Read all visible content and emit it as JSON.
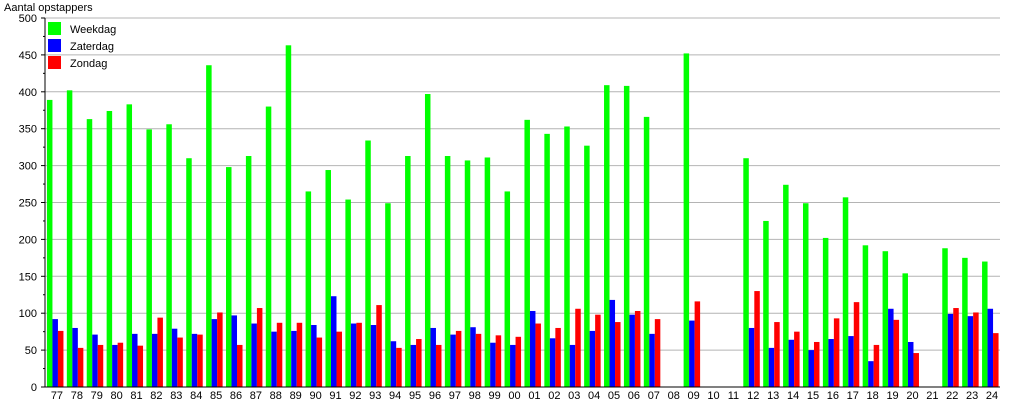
{
  "chart_data": {
    "type": "bar",
    "title": "",
    "ylabel": "Aantal opstappers",
    "xlabel": "",
    "ylim": [
      0,
      500
    ],
    "yticks": [
      0,
      50,
      100,
      150,
      200,
      250,
      300,
      350,
      400,
      450,
      500
    ],
    "grid": true,
    "legend_position": "top-left",
    "categories": [
      "77",
      "78",
      "79",
      "80",
      "81",
      "82",
      "83",
      "84",
      "85",
      "86",
      "87",
      "88",
      "89",
      "90",
      "91",
      "92",
      "93",
      "94",
      "95",
      "96",
      "97",
      "98",
      "99",
      "00",
      "01",
      "02",
      "03",
      "04",
      "05",
      "06",
      "07",
      "08",
      "09",
      "10",
      "11",
      "12",
      "13",
      "14",
      "15",
      "16",
      "17",
      "18",
      "19",
      "20",
      "21",
      "22",
      "23",
      "24"
    ],
    "series": [
      {
        "name": "Weekdag",
        "color": "#00ff00",
        "values": [
          389,
          402,
          363,
          374,
          383,
          349,
          356,
          310,
          436,
          298,
          313,
          380,
          463,
          265,
          294,
          254,
          334,
          249,
          313,
          397,
          313,
          307,
          311,
          265,
          362,
          343,
          353,
          327,
          409,
          408,
          366,
          null,
          452,
          null,
          null,
          310,
          225,
          274,
          249,
          202,
          257,
          192,
          184,
          154,
          null,
          188,
          175,
          170
        ]
      },
      {
        "name": "Zaterdag",
        "color": "#0000ff",
        "values": [
          92,
          80,
          71,
          57,
          72,
          72,
          79,
          72,
          92,
          97,
          86,
          75,
          76,
          84,
          123,
          86,
          84,
          62,
          57,
          80,
          71,
          81,
          60,
          57,
          103,
          66,
          57,
          76,
          118,
          98,
          72,
          null,
          90,
          null,
          null,
          80,
          53,
          64,
          50,
          65,
          69,
          35,
          106,
          61,
          null,
          99,
          96,
          106
        ]
      },
      {
        "name": "Zondag",
        "color": "#ff0000",
        "values": [
          76,
          53,
          57,
          60,
          56,
          94,
          67,
          71,
          101,
          57,
          107,
          87,
          87,
          67,
          75,
          87,
          111,
          53,
          65,
          57,
          76,
          72,
          70,
          68,
          86,
          80,
          106,
          98,
          88,
          103,
          92,
          null,
          116,
          null,
          null,
          130,
          88,
          75,
          61,
          93,
          115,
          57,
          91,
          46,
          null,
          107,
          101,
          73
        ]
      }
    ]
  }
}
